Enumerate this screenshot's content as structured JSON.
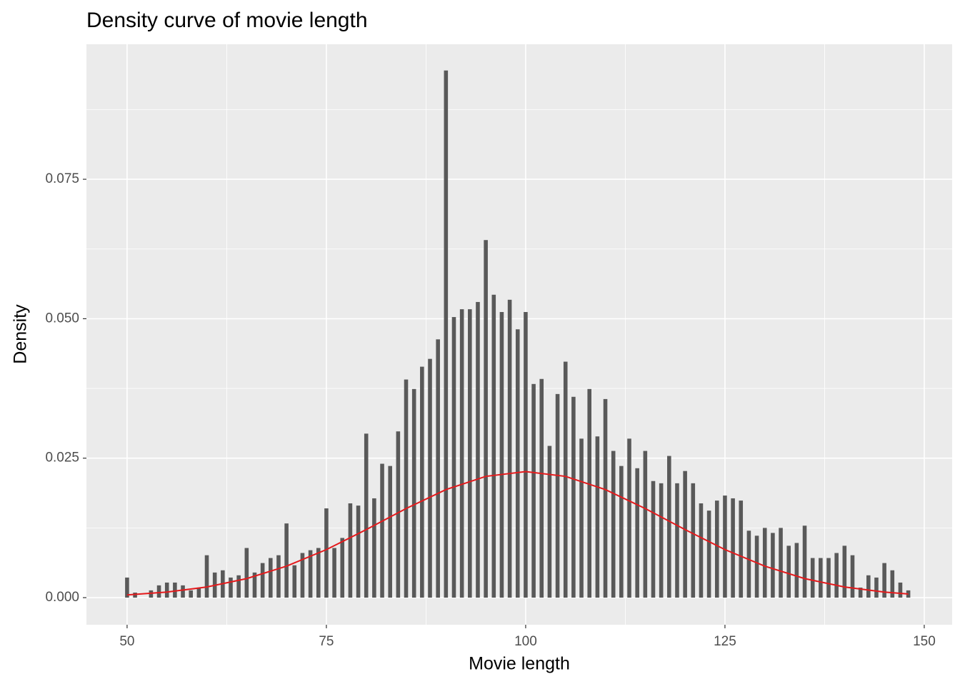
{
  "chart_data": {
    "type": "bar",
    "title": "Density curve of movie length",
    "x_label": "Movie length",
    "y_label": "Density",
    "xlim": [
      44.9,
      153.5
    ],
    "ylim": [
      -0.00486,
      0.0992
    ],
    "xticks": [
      50,
      75,
      100,
      125,
      150
    ],
    "yticks": [
      {
        "value": 0,
        "label": "0.000"
      },
      {
        "value": 0.025,
        "label": "0.025"
      },
      {
        "value": 0.05,
        "label": "0.050"
      },
      {
        "value": 0.075,
        "label": "0.075"
      }
    ],
    "xminor": [
      62.5,
      87.5,
      112.5,
      137.5
    ],
    "yminor": [
      0.0125,
      0.0375,
      0.0625,
      0.0875
    ],
    "grid": true,
    "bar_width": 0.5,
    "series": [
      {
        "kind": "bar",
        "color": "#595959",
        "x": [
          50,
          51,
          53,
          54,
          55,
          56,
          57,
          58,
          59,
          60,
          61,
          62,
          63,
          64,
          65,
          66,
          67,
          68,
          69,
          70,
          71,
          72,
          73,
          74,
          75,
          76,
          77,
          78,
          79,
          80,
          81,
          82,
          83,
          84,
          85,
          86,
          87,
          88,
          89,
          90,
          91,
          92,
          93,
          94,
          95,
          96,
          97,
          98,
          99,
          100,
          101,
          102,
          103,
          104,
          105,
          106,
          107,
          108,
          109,
          110,
          111,
          112,
          113,
          114,
          115,
          116,
          117,
          118,
          119,
          120,
          121,
          122,
          123,
          124,
          125,
          126,
          127,
          128,
          129,
          130,
          131,
          132,
          133,
          134,
          135,
          136,
          137,
          138,
          139,
          140,
          141,
          142,
          143,
          144,
          145,
          146,
          147,
          148
        ],
        "values": [
          0.0036,
          0.0009,
          0.0013,
          0.0022,
          0.0027,
          0.0027,
          0.0022,
          0.0013,
          0.0018,
          0.0076,
          0.0045,
          0.0049,
          0.0036,
          0.004,
          0.0089,
          0.0045,
          0.0062,
          0.0071,
          0.0076,
          0.0133,
          0.0058,
          0.008,
          0.0085,
          0.0089,
          0.016,
          0.0089,
          0.0107,
          0.0169,
          0.0165,
          0.0294,
          0.0178,
          0.024,
          0.0236,
          0.0298,
          0.0391,
          0.0374,
          0.0414,
          0.0428,
          0.0463,
          0.0945,
          0.0503,
          0.0517,
          0.0517,
          0.053,
          0.0641,
          0.0543,
          0.0512,
          0.0534,
          0.0481,
          0.0512,
          0.0383,
          0.0392,
          0.0272,
          0.0365,
          0.0423,
          0.036,
          0.0285,
          0.0374,
          0.0289,
          0.0356,
          0.0263,
          0.0236,
          0.0285,
          0.0232,
          0.0263,
          0.0209,
          0.0205,
          0.0254,
          0.0205,
          0.0227,
          0.0205,
          0.0169,
          0.0156,
          0.0174,
          0.0183,
          0.0178,
          0.0174,
          0.012,
          0.0111,
          0.0125,
          0.0116,
          0.0125,
          0.0093,
          0.0098,
          0.0129,
          0.0071,
          0.0071,
          0.0071,
          0.008,
          0.0093,
          0.0076,
          0.0018,
          0.004,
          0.0036,
          0.0062,
          0.0049,
          0.0027,
          0.0013
        ]
      },
      {
        "kind": "line",
        "color": "#e41a1c",
        "x": [
          50,
          55,
          60,
          65,
          70,
          75,
          80,
          85,
          90,
          95,
          100,
          105,
          110,
          115,
          120,
          125,
          130,
          135,
          140,
          145,
          148
        ],
        "values": [
          0.00048,
          0.00099,
          0.00191,
          0.00341,
          0.00564,
          0.00861,
          0.01219,
          0.01597,
          0.01937,
          0.02174,
          0.0226,
          0.02174,
          0.01937,
          0.01597,
          0.01219,
          0.00861,
          0.00564,
          0.00341,
          0.00191,
          0.00099,
          0.00065
        ]
      }
    ]
  }
}
